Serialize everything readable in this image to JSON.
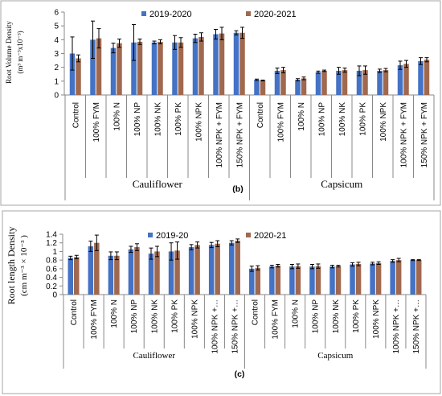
{
  "colors": {
    "series1": "#4472C4",
    "series2": "#A0694F",
    "axis": "#888888",
    "frame": "#A6A6A6"
  },
  "chart_data": [
    {
      "type": "bar",
      "panel_label": "(b)",
      "ylabel": "Root Volume Density",
      "ylabel_unit": "(m³ m⁻³x10⁻³)",
      "ylim": [
        0,
        6
      ],
      "yticks": [
        0,
        1,
        2,
        3,
        4,
        5,
        6
      ],
      "grid": false,
      "legend_position": "top-right",
      "groups": [
        "Cauliflower",
        "Capsicum"
      ],
      "categories": [
        "Control",
        "100% FYM",
        "100% N",
        "100% NP",
        "100% NK",
        "100% PK",
        "100% NPK",
        "100% NPK + FYM",
        "150% NPK + FYM"
      ],
      "series": [
        {
          "name": "2019-2020",
          "values": [
            [
              3.0,
              4.0,
              3.4,
              3.8,
              3.8,
              3.8,
              4.1,
              4.4,
              4.5
            ],
            [
              1.1,
              1.75,
              1.1,
              1.65,
              1.75,
              1.75,
              1.75,
              2.15,
              2.45
            ]
          ],
          "errors": [
            [
              1.2,
              1.35,
              0.35,
              1.3,
              0.1,
              0.5,
              0.3,
              0.35,
              0.15
            ],
            [
              0.05,
              0.2,
              0.08,
              0.08,
              0.25,
              0.35,
              0.12,
              0.3,
              0.25
            ]
          ]
        },
        {
          "name": "2020-2021",
          "values": [
            [
              2.65,
              4.1,
              3.75,
              3.85,
              3.85,
              3.8,
              4.2,
              4.45,
              4.5
            ],
            [
              1.05,
              1.8,
              1.2,
              1.75,
              1.8,
              1.8,
              1.8,
              2.25,
              2.55
            ]
          ],
          "errors": [
            [
              0.25,
              0.7,
              0.3,
              0.2,
              0.15,
              0.35,
              0.3,
              0.45,
              0.4
            ],
            [
              0.03,
              0.2,
              0.1,
              0.05,
              0.15,
              0.3,
              0.12,
              0.25,
              0.15
            ]
          ]
        }
      ]
    },
    {
      "type": "bar",
      "panel_label": "(c)",
      "ylabel": "Root length Density",
      "ylabel_unit": "(cm m⁻³ × 10⁻³ )",
      "ylim": [
        0,
        1.4
      ],
      "yticks": [
        "0",
        "0.2",
        "0.4",
        "0.6",
        "0.8",
        "1",
        "1.2",
        "1.4"
      ],
      "grid": false,
      "legend_position": "top",
      "groups": [
        "Cauliflower",
        "Capsicum"
      ],
      "categories": [
        "Control",
        "100% FYM",
        "100% N",
        "100% NP",
        "100% NK",
        "100% PK",
        "100% NPK",
        "100% NPK +…",
        "150% NPK +…"
      ],
      "series": [
        {
          "name": "2019-20",
          "values": [
            [
              0.85,
              1.12,
              0.9,
              1.05,
              0.95,
              1.0,
              1.1,
              1.15,
              1.2
            ],
            [
              0.6,
              0.65,
              0.65,
              0.65,
              0.65,
              0.7,
              0.72,
              0.78,
              0.8
            ]
          ],
          "errors": [
            [
              0.04,
              0.12,
              0.09,
              0.07,
              0.13,
              0.2,
              0.06,
              0.06,
              0.05
            ],
            [
              0.06,
              0.03,
              0.05,
              0.05,
              0.03,
              0.04,
              0.03,
              0.03,
              0.01
            ]
          ]
        },
        {
          "name": "2020-21",
          "values": [
            [
              0.87,
              1.2,
              0.9,
              1.1,
              1.0,
              1.02,
              1.15,
              1.18,
              1.25
            ],
            [
              0.62,
              0.67,
              0.66,
              0.66,
              0.66,
              0.71,
              0.73,
              0.8,
              0.8
            ]
          ],
          "errors": [
            [
              0.04,
              0.18,
              0.09,
              0.08,
              0.12,
              0.2,
              0.07,
              0.07,
              0.04
            ],
            [
              0.05,
              0.03,
              0.05,
              0.05,
              0.02,
              0.04,
              0.03,
              0.04,
              0.01
            ]
          ]
        }
      ]
    }
  ]
}
